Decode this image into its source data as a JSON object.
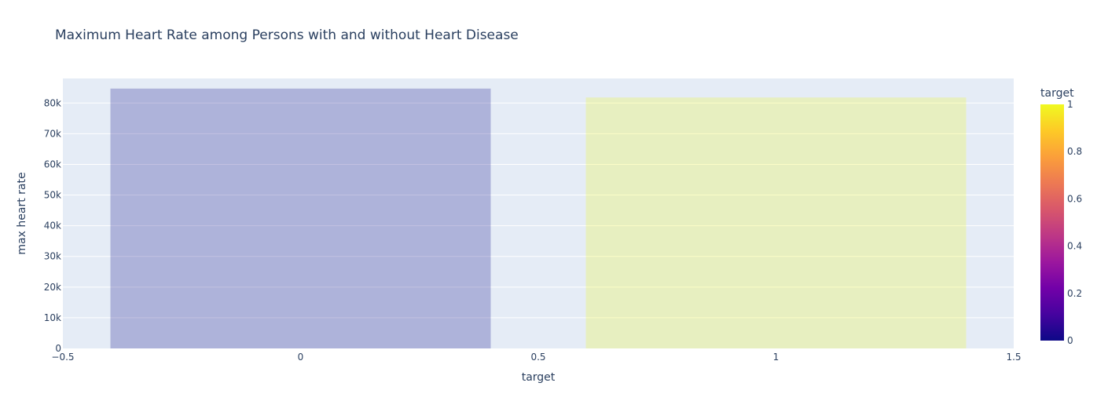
{
  "chart_data": {
    "type": "bar",
    "title": "Maximum Heart Rate among Persons with and without Heart Disease",
    "xlabel": "target",
    "ylabel": "max heart rate",
    "xlim": [
      -0.5,
      1.5
    ],
    "ylim": [
      0,
      88000
    ],
    "x_ticks": [
      {
        "value": -0.5,
        "label": "−0.5"
      },
      {
        "value": 0,
        "label": "0"
      },
      {
        "value": 0.5,
        "label": "0.5"
      },
      {
        "value": 1,
        "label": "1"
      },
      {
        "value": 1.5,
        "label": "1.5"
      }
    ],
    "y_ticks": [
      {
        "value": 0,
        "label": "0"
      },
      {
        "value": 10000,
        "label": "10k"
      },
      {
        "value": 20000,
        "label": "20k"
      },
      {
        "value": 30000,
        "label": "30k"
      },
      {
        "value": 40000,
        "label": "40k"
      },
      {
        "value": 50000,
        "label": "50k"
      },
      {
        "value": 60000,
        "label": "60k"
      },
      {
        "value": 70000,
        "label": "70k"
      },
      {
        "value": 80000,
        "label": "80k"
      }
    ],
    "bar_width": 0.8,
    "bars": [
      {
        "x": 0,
        "value": 84700,
        "color": "#0d0887"
      },
      {
        "x": 1,
        "value": 81800,
        "color": "#f0f921"
      }
    ],
    "bar_opacity": 0.25,
    "grid": true,
    "colorbar": {
      "title": "target",
      "range": [
        0,
        1
      ],
      "ticks": [
        {
          "value": 0,
          "label": "0"
        },
        {
          "value": 0.2,
          "label": "0.2"
        },
        {
          "value": 0.4,
          "label": "0.4"
        },
        {
          "value": 0.6,
          "label": "0.6"
        },
        {
          "value": 0.8,
          "label": "0.8"
        },
        {
          "value": 1,
          "label": "1"
        }
      ],
      "colorscale": [
        "#0d0887",
        "#46039f",
        "#7201a8",
        "#9c179e",
        "#bd3786",
        "#d8576b",
        "#ed7953",
        "#fb9f3a",
        "#fdca26",
        "#f0f921"
      ]
    },
    "colors": {
      "plot_bg": "#e5ecf6",
      "grid": "#ffffff",
      "text": "#2a3f5f"
    }
  }
}
